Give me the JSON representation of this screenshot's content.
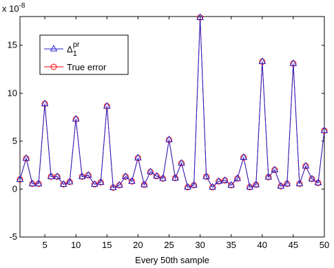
{
  "chart_data": {
    "type": "line",
    "xlabel": "Every 50th sample",
    "ylabel": "",
    "xlim": [
      1,
      50
    ],
    "ylim": [
      -5,
      18
    ],
    "x_ticks": [
      5,
      10,
      15,
      20,
      25,
      30,
      35,
      40,
      45,
      50
    ],
    "y_ticks": [
      -5,
      0,
      5,
      10,
      15
    ],
    "y_multiplier_text": "x 10",
    "y_multiplier_exponent": "-8",
    "grid": false,
    "legend_position": "top-left",
    "x": [
      1,
      2,
      3,
      4,
      5,
      6,
      7,
      8,
      9,
      10,
      11,
      12,
      13,
      14,
      15,
      16,
      17,
      18,
      19,
      20,
      21,
      22,
      23,
      24,
      25,
      26,
      27,
      28,
      29,
      30,
      31,
      32,
      33,
      34,
      35,
      36,
      37,
      38,
      39,
      40,
      41,
      42,
      43,
      44,
      45,
      46,
      47,
      48,
      49,
      50
    ],
    "series": [
      {
        "name_main": "Δ",
        "name_sub": "1",
        "name_sup": "pr",
        "color": "#2222cc",
        "marker": "triangle",
        "values": [
          1.0,
          3.2,
          0.55,
          0.55,
          8.9,
          1.3,
          1.3,
          0.5,
          0.75,
          7.3,
          1.3,
          1.45,
          0.5,
          0.7,
          8.65,
          0.15,
          0.4,
          1.3,
          0.8,
          3.25,
          0.45,
          1.8,
          1.35,
          1.1,
          5.15,
          1.15,
          2.7,
          0.2,
          0.4,
          17.9,
          1.3,
          0.2,
          0.8,
          0.9,
          0.4,
          1.1,
          3.3,
          0.2,
          0.45,
          13.3,
          1.25,
          2.0,
          0.3,
          0.55,
          13.1,
          0.55,
          2.4,
          1.05,
          0.65,
          6.1
        ]
      },
      {
        "name": "True error",
        "color": "#ff0000",
        "marker": "circle",
        "values": [
          1.0,
          3.2,
          0.55,
          0.55,
          8.9,
          1.3,
          1.3,
          0.5,
          0.75,
          7.3,
          1.3,
          1.45,
          0.5,
          0.7,
          8.65,
          0.15,
          0.4,
          1.3,
          0.8,
          3.25,
          0.45,
          1.8,
          1.35,
          1.1,
          5.15,
          1.15,
          2.7,
          0.2,
          0.4,
          17.9,
          1.3,
          0.2,
          0.8,
          0.9,
          0.4,
          1.1,
          3.3,
          0.2,
          0.45,
          13.3,
          1.25,
          2.0,
          0.3,
          0.55,
          13.1,
          0.55,
          2.4,
          1.05,
          0.65,
          6.1
        ]
      }
    ]
  }
}
